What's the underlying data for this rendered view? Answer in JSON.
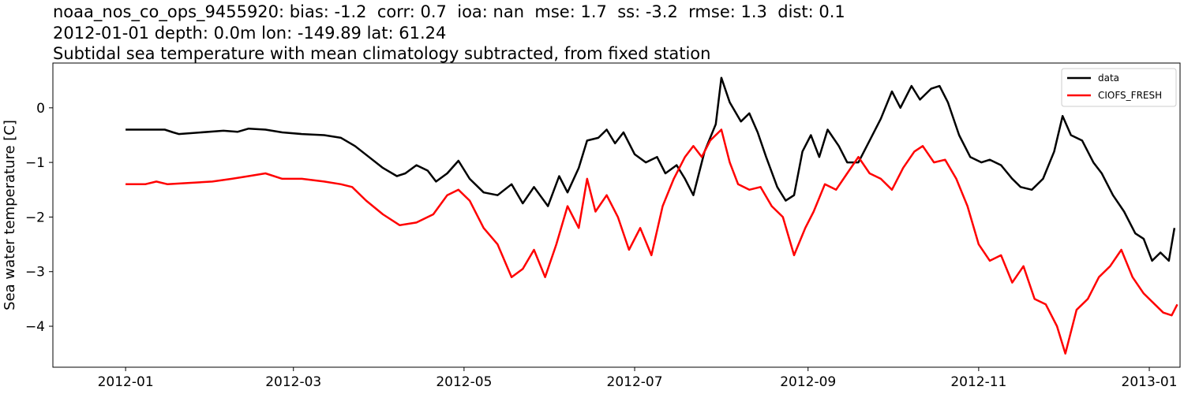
{
  "header": {
    "line1": "noaa_nos_co_ops_9455920: bias: -1.2  corr: 0.7  ioa: nan  mse: 1.7  ss: -3.2  rmse: 1.3  dist: 0.1",
    "line2": "2012-01-01 depth: 0.0m lon: -149.89 lat: 61.24",
    "line3": "Subtidal sea temperature with mean climatology subtracted, from fixed station"
  },
  "chart_data": {
    "type": "line",
    "title": "Subtidal sea temperature with mean climatology subtracted, from fixed station",
    "xlabel": "",
    "ylabel": "Sea water temperature [C]",
    "xlim": [
      "2011-12-06",
      "2013-01-12"
    ],
    "ylim": [
      -4.75,
      0.82
    ],
    "xticks": [
      "2012-01",
      "2012-03",
      "2012-05",
      "2012-07",
      "2012-09",
      "2012-11",
      "2013-01"
    ],
    "yticks": [
      0,
      -1,
      -2,
      -3,
      -4
    ],
    "ytick_labels": [
      "0",
      "−1",
      "−2",
      "−3",
      "−4"
    ],
    "grid": false,
    "legend_position": "top-right",
    "series": [
      {
        "name": "data",
        "color": "#000000",
        "points": [
          [
            "2012-01-01",
            -0.4
          ],
          [
            "2012-01-15",
            -0.4
          ],
          [
            "2012-01-18",
            -0.45
          ],
          [
            "2012-01-20",
            -0.48
          ],
          [
            "2012-02-05",
            -0.42
          ],
          [
            "2012-02-10",
            -0.44
          ],
          [
            "2012-02-14",
            -0.38
          ],
          [
            "2012-02-20",
            -0.4
          ],
          [
            "2012-02-26",
            -0.45
          ],
          [
            "2012-03-04",
            -0.48
          ],
          [
            "2012-03-12",
            -0.5
          ],
          [
            "2012-03-18",
            -0.55
          ],
          [
            "2012-03-23",
            -0.7
          ],
          [
            "2012-03-28",
            -0.9
          ],
          [
            "2012-04-02",
            -1.1
          ],
          [
            "2012-04-07",
            -1.25
          ],
          [
            "2012-04-10",
            -1.2
          ],
          [
            "2012-04-14",
            -1.05
          ],
          [
            "2012-04-18",
            -1.15
          ],
          [
            "2012-04-21",
            -1.35
          ],
          [
            "2012-04-25",
            -1.2
          ],
          [
            "2012-04-29",
            -0.97
          ],
          [
            "2012-05-03",
            -1.3
          ],
          [
            "2012-05-08",
            -1.55
          ],
          [
            "2012-05-13",
            -1.6
          ],
          [
            "2012-05-18",
            -1.4
          ],
          [
            "2012-05-22",
            -1.75
          ],
          [
            "2012-05-26",
            -1.45
          ],
          [
            "2012-05-31",
            -1.8
          ],
          [
            "2012-06-04",
            -1.25
          ],
          [
            "2012-06-07",
            -1.55
          ],
          [
            "2012-06-11",
            -1.1
          ],
          [
            "2012-06-14",
            -0.6
          ],
          [
            "2012-06-18",
            -0.55
          ],
          [
            "2012-06-21",
            -0.4
          ],
          [
            "2012-06-24",
            -0.65
          ],
          [
            "2012-06-27",
            -0.45
          ],
          [
            "2012-07-01",
            -0.85
          ],
          [
            "2012-07-05",
            -1.0
          ],
          [
            "2012-07-09",
            -0.9
          ],
          [
            "2012-07-12",
            -1.2
          ],
          [
            "2012-07-16",
            -1.05
          ],
          [
            "2012-07-19",
            -1.3
          ],
          [
            "2012-07-22",
            -1.6
          ],
          [
            "2012-07-26",
            -0.8
          ],
          [
            "2012-07-30",
            -0.3
          ],
          [
            "2012-08-01",
            0.55
          ],
          [
            "2012-08-04",
            0.1
          ],
          [
            "2012-08-08",
            -0.25
          ],
          [
            "2012-08-11",
            -0.1
          ],
          [
            "2012-08-14",
            -0.45
          ],
          [
            "2012-08-17",
            -0.9
          ],
          [
            "2012-08-21",
            -1.45
          ],
          [
            "2012-08-24",
            -1.7
          ],
          [
            "2012-08-27",
            -1.6
          ],
          [
            "2012-08-30",
            -0.8
          ],
          [
            "2012-09-02",
            -0.5
          ],
          [
            "2012-09-05",
            -0.9
          ],
          [
            "2012-09-08",
            -0.4
          ],
          [
            "2012-09-12",
            -0.7
          ],
          [
            "2012-09-15",
            -1.0
          ],
          [
            "2012-09-19",
            -1.0
          ],
          [
            "2012-09-23",
            -0.6
          ],
          [
            "2012-09-27",
            -0.2
          ],
          [
            "2012-10-01",
            0.3
          ],
          [
            "2012-10-04",
            0.0
          ],
          [
            "2012-10-08",
            0.4
          ],
          [
            "2012-10-11",
            0.15
          ],
          [
            "2012-10-15",
            0.35
          ],
          [
            "2012-10-18",
            0.4
          ],
          [
            "2012-10-21",
            0.1
          ],
          [
            "2012-10-25",
            -0.5
          ],
          [
            "2012-10-29",
            -0.9
          ],
          [
            "2012-11-02",
            -1.0
          ],
          [
            "2012-11-05",
            -0.95
          ],
          [
            "2012-11-09",
            -1.05
          ],
          [
            "2012-11-13",
            -1.3
          ],
          [
            "2012-11-16",
            -1.45
          ],
          [
            "2012-11-20",
            -1.5
          ],
          [
            "2012-11-24",
            -1.3
          ],
          [
            "2012-11-28",
            -0.8
          ],
          [
            "2012-12-01",
            -0.15
          ],
          [
            "2012-12-04",
            -0.5
          ],
          [
            "2012-12-08",
            -0.6
          ],
          [
            "2012-12-12",
            -1.0
          ],
          [
            "2012-12-15",
            -1.2
          ],
          [
            "2012-12-19",
            -1.6
          ],
          [
            "2012-12-23",
            -1.9
          ],
          [
            "2012-12-27",
            -2.3
          ],
          [
            "2012-12-30",
            -2.4
          ],
          [
            "2013-01-02",
            -2.8
          ],
          [
            "2013-01-05",
            -2.65
          ],
          [
            "2013-01-08",
            -2.8
          ],
          [
            "2013-01-10",
            -2.2
          ]
        ]
      },
      {
        "name": "CIOFS_FRESH",
        "color": "#ff0000",
        "points": [
          [
            "2012-01-01",
            -1.4
          ],
          [
            "2012-01-08",
            -1.4
          ],
          [
            "2012-01-12",
            -1.35
          ],
          [
            "2012-01-16",
            -1.4
          ],
          [
            "2012-01-22",
            -1.38
          ],
          [
            "2012-02-01",
            -1.35
          ],
          [
            "2012-02-08",
            -1.3
          ],
          [
            "2012-02-14",
            -1.25
          ],
          [
            "2012-02-20",
            -1.2
          ],
          [
            "2012-02-26",
            -1.3
          ],
          [
            "2012-03-04",
            -1.3
          ],
          [
            "2012-03-12",
            -1.35
          ],
          [
            "2012-03-18",
            -1.4
          ],
          [
            "2012-03-22",
            -1.45
          ],
          [
            "2012-03-27",
            -1.7
          ],
          [
            "2012-04-02",
            -1.95
          ],
          [
            "2012-04-08",
            -2.15
          ],
          [
            "2012-04-14",
            -2.1
          ],
          [
            "2012-04-20",
            -1.95
          ],
          [
            "2012-04-25",
            -1.6
          ],
          [
            "2012-04-29",
            -1.5
          ],
          [
            "2012-05-03",
            -1.7
          ],
          [
            "2012-05-08",
            -2.2
          ],
          [
            "2012-05-13",
            -2.5
          ],
          [
            "2012-05-18",
            -3.1
          ],
          [
            "2012-05-22",
            -2.95
          ],
          [
            "2012-05-26",
            -2.6
          ],
          [
            "2012-05-30",
            -3.1
          ],
          [
            "2012-06-03",
            -2.5
          ],
          [
            "2012-06-07",
            -1.8
          ],
          [
            "2012-06-11",
            -2.2
          ],
          [
            "2012-06-14",
            -1.3
          ],
          [
            "2012-06-17",
            -1.9
          ],
          [
            "2012-06-21",
            -1.6
          ],
          [
            "2012-06-25",
            -2.0
          ],
          [
            "2012-06-29",
            -2.6
          ],
          [
            "2012-07-03",
            -2.2
          ],
          [
            "2012-07-07",
            -2.7
          ],
          [
            "2012-07-11",
            -1.8
          ],
          [
            "2012-07-15",
            -1.3
          ],
          [
            "2012-07-19",
            -0.9
          ],
          [
            "2012-07-22",
            -0.7
          ],
          [
            "2012-07-25",
            -0.9
          ],
          [
            "2012-07-28",
            -0.6
          ],
          [
            "2012-08-01",
            -0.4
          ],
          [
            "2012-08-04",
            -1.0
          ],
          [
            "2012-08-07",
            -1.4
          ],
          [
            "2012-08-11",
            -1.5
          ],
          [
            "2012-08-15",
            -1.45
          ],
          [
            "2012-08-19",
            -1.8
          ],
          [
            "2012-08-23",
            -2.0
          ],
          [
            "2012-08-27",
            -2.7
          ],
          [
            "2012-08-31",
            -2.2
          ],
          [
            "2012-09-03",
            -1.9
          ],
          [
            "2012-09-07",
            -1.4
          ],
          [
            "2012-09-11",
            -1.5
          ],
          [
            "2012-09-15",
            -1.2
          ],
          [
            "2012-09-19",
            -0.9
          ],
          [
            "2012-09-23",
            -1.2
          ],
          [
            "2012-09-27",
            -1.3
          ],
          [
            "2012-10-01",
            -1.5
          ],
          [
            "2012-10-05",
            -1.1
          ],
          [
            "2012-10-09",
            -0.8
          ],
          [
            "2012-10-12",
            -0.7
          ],
          [
            "2012-10-16",
            -1.0
          ],
          [
            "2012-10-20",
            -0.95
          ],
          [
            "2012-10-24",
            -1.3
          ],
          [
            "2012-10-28",
            -1.8
          ],
          [
            "2012-11-01",
            -2.5
          ],
          [
            "2012-11-05",
            -2.8
          ],
          [
            "2012-11-09",
            -2.7
          ],
          [
            "2012-11-13",
            -3.2
          ],
          [
            "2012-11-17",
            -2.9
          ],
          [
            "2012-11-21",
            -3.5
          ],
          [
            "2012-11-25",
            -3.6
          ],
          [
            "2012-11-29",
            -4.0
          ],
          [
            "2012-12-02",
            -4.5
          ],
          [
            "2012-12-06",
            -3.7
          ],
          [
            "2012-12-10",
            -3.5
          ],
          [
            "2012-12-14",
            -3.1
          ],
          [
            "2012-12-18",
            -2.9
          ],
          [
            "2012-12-22",
            -2.6
          ],
          [
            "2012-12-26",
            -3.1
          ],
          [
            "2012-12-30",
            -3.4
          ],
          [
            "2013-01-03",
            -3.6
          ],
          [
            "2013-01-06",
            -3.75
          ],
          [
            "2013-01-09",
            -3.8
          ],
          [
            "2013-01-11",
            -3.6
          ]
        ]
      }
    ]
  }
}
